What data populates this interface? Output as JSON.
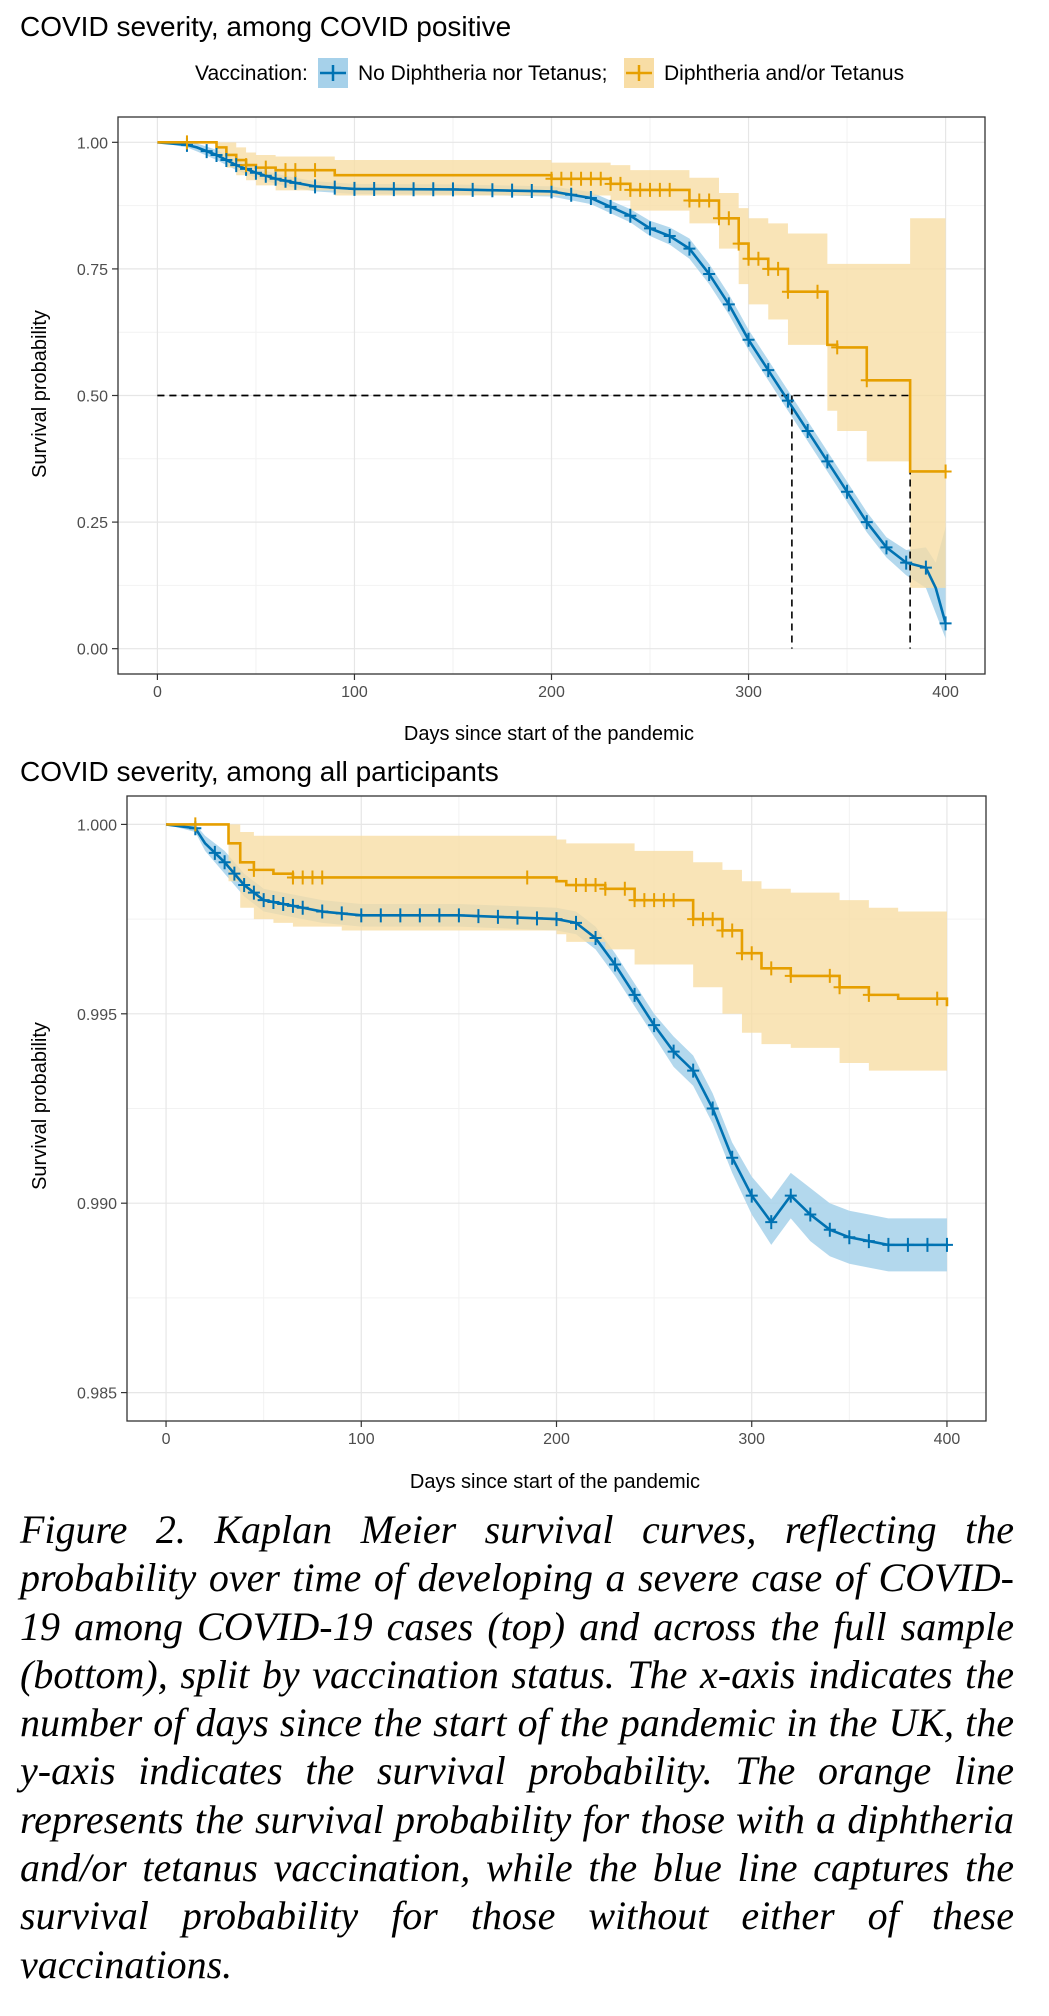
{
  "legend": {
    "title": "Vaccination:",
    "items": [
      {
        "label": "No Diphtheria nor Tetanus;",
        "color": "#0072B2",
        "fill": "#A6D1EA"
      },
      {
        "label": "Diphtheria and/or Tetanus",
        "color": "#E69F00",
        "fill": "#F8DDA5"
      }
    ]
  },
  "caption": "Figure 2. Kaplan Meier survival curves, reflecting the probability over time of developing a severe case of COVID-19 among COVID-19 cases (top) and across the full sample (bottom), split by vaccination status. The x-axis indicates the number of days since the start of the pandemic in the UK, the y-axis indicates the survival probability. The orange line represents the survival probability for those with a diphtheria and/or tetanus vaccination, while the blue line captures the survival probability for those without either of these vaccinations.",
  "chart_data": [
    {
      "type": "line",
      "title": "COVID severity, among COVID positive",
      "xlabel": "Days since start of the pandemic",
      "ylabel": "Survival probability",
      "xlim": [
        -20,
        420
      ],
      "ylim": [
        -0.05,
        1.05
      ],
      "xticks": [
        0,
        100,
        200,
        300,
        400
      ],
      "yticks": [
        0.0,
        0.25,
        0.5,
        0.75,
        1.0
      ],
      "ytick_labels": [
        "0.00",
        "0.25",
        "0.50",
        "0.75",
        "1.00"
      ],
      "grid": true,
      "median_lines": [
        {
          "y": 0.5,
          "x": 322
        },
        {
          "y": 0.5,
          "x": 382
        }
      ],
      "series": [
        {
          "name": "No Diphtheria nor Tetanus;",
          "color": "#0072B2",
          "step": false,
          "x": [
            0,
            15,
            20,
            30,
            40,
            50,
            60,
            70,
            80,
            100,
            150,
            200,
            220,
            240,
            250,
            260,
            270,
            280,
            290,
            300,
            310,
            320,
            330,
            340,
            350,
            360,
            370,
            380,
            390,
            395,
            400
          ],
          "y": [
            1.0,
            0.995,
            0.99,
            0.975,
            0.955,
            0.94,
            0.928,
            0.92,
            0.913,
            0.908,
            0.907,
            0.903,
            0.89,
            0.855,
            0.83,
            0.815,
            0.79,
            0.74,
            0.68,
            0.61,
            0.55,
            0.49,
            0.43,
            0.37,
            0.31,
            0.25,
            0.2,
            0.17,
            0.16,
            0.12,
            0.05
          ],
          "ci_lower": [
            1.0,
            0.99,
            0.982,
            0.965,
            0.945,
            0.93,
            0.918,
            0.91,
            0.903,
            0.898,
            0.897,
            0.893,
            0.878,
            0.842,
            0.815,
            0.798,
            0.77,
            0.72,
            0.66,
            0.59,
            0.53,
            0.47,
            0.41,
            0.35,
            0.29,
            0.23,
            0.18,
            0.145,
            0.12,
            0.07,
            0.02
          ],
          "ci_upper": [
            1.0,
            1.0,
            0.998,
            0.985,
            0.965,
            0.95,
            0.938,
            0.93,
            0.923,
            0.918,
            0.917,
            0.913,
            0.902,
            0.868,
            0.845,
            0.832,
            0.81,
            0.76,
            0.7,
            0.63,
            0.57,
            0.51,
            0.45,
            0.39,
            0.33,
            0.27,
            0.22,
            0.195,
            0.2,
            0.17,
            0.24
          ],
          "censor_x": [
            15,
            25,
            30,
            35,
            40,
            45,
            50,
            55,
            60,
            65,
            70,
            80,
            90,
            100,
            110,
            120,
            130,
            140,
            150,
            160,
            170,
            180,
            190,
            200,
            210,
            220,
            230,
            240,
            250,
            260,
            270,
            280,
            290,
            300,
            310,
            320,
            330,
            340,
            350,
            360,
            370,
            380,
            390,
            400
          ]
        },
        {
          "name": "Diphtheria and/or Tetanus",
          "color": "#E69F00",
          "step": true,
          "x": [
            0,
            30,
            35,
            40,
            45,
            50,
            60,
            90,
            200,
            230,
            240,
            270,
            285,
            295,
            300,
            310,
            320,
            340,
            345,
            360,
            382,
            400
          ],
          "y": [
            1.0,
            0.99,
            0.975,
            0.965,
            0.955,
            0.95,
            0.945,
            0.935,
            0.928,
            0.918,
            0.906,
            0.885,
            0.85,
            0.8,
            0.77,
            0.75,
            0.705,
            0.6,
            0.595,
            0.53,
            0.35,
            0.35
          ],
          "ci_lower": [
            1.0,
            0.97,
            0.95,
            0.935,
            0.925,
            0.915,
            0.905,
            0.895,
            0.895,
            0.885,
            0.865,
            0.84,
            0.79,
            0.72,
            0.68,
            0.65,
            0.6,
            0.47,
            0.43,
            0.37,
            0.12,
            0.12
          ],
          "ci_upper": [
            1.0,
            1.0,
            1.0,
            0.99,
            0.98,
            0.975,
            0.972,
            0.965,
            0.96,
            0.955,
            0.945,
            0.93,
            0.9,
            0.87,
            0.85,
            0.84,
            0.82,
            0.76,
            0.76,
            0.76,
            0.85,
            0.85
          ],
          "censor_x": [
            15,
            45,
            55,
            65,
            70,
            80,
            200,
            205,
            210,
            215,
            220,
            225,
            230,
            235,
            240,
            245,
            250,
            255,
            260,
            270,
            275,
            280,
            285,
            290,
            295,
            300,
            305,
            310,
            315,
            320,
            335,
            345,
            360,
            400
          ]
        }
      ]
    },
    {
      "type": "line",
      "title": "COVID severity, among all participants",
      "xlabel": "Days since start of the pandemic",
      "ylabel": "Survival probability",
      "xlim": [
        -20,
        420
      ],
      "ylim": [
        0.98425,
        1.00075
      ],
      "xticks": [
        0,
        100,
        200,
        300,
        400
      ],
      "yticks": [
        0.985,
        0.99,
        0.995,
        1.0
      ],
      "ytick_labels": [
        "0.985",
        "0.990",
        "0.995",
        "1.000"
      ],
      "grid": true,
      "median_lines": [],
      "series": [
        {
          "name": "No Diphtheria nor Tetanus;",
          "color": "#0072B2",
          "step": false,
          "x": [
            0,
            15,
            20,
            30,
            40,
            50,
            60,
            70,
            80,
            100,
            150,
            200,
            210,
            220,
            230,
            240,
            250,
            260,
            270,
            280,
            290,
            300,
            310,
            320,
            330,
            340,
            350,
            360,
            370,
            380,
            400
          ],
          "y": [
            1.0,
            0.9999,
            0.9995,
            0.999,
            0.9984,
            0.998,
            0.9979,
            0.9978,
            0.9977,
            0.9976,
            0.9976,
            0.9975,
            0.9974,
            0.997,
            0.9963,
            0.9955,
            0.9947,
            0.994,
            0.9935,
            0.9925,
            0.9912,
            0.9902,
            0.9895,
            0.9902,
            0.9897,
            0.9893,
            0.9891,
            0.989,
            0.9889,
            0.9889,
            0.9889
          ],
          "ci_lower": [
            1.0,
            0.9998,
            0.9993,
            0.9987,
            0.9981,
            0.9977,
            0.9976,
            0.9975,
            0.9974,
            0.9973,
            0.9973,
            0.9972,
            0.9971,
            0.9967,
            0.996,
            0.9952,
            0.9944,
            0.9936,
            0.9931,
            0.9921,
            0.9908,
            0.9897,
            0.9889,
            0.9896,
            0.989,
            0.9886,
            0.9884,
            0.9883,
            0.9882,
            0.9882,
            0.9882
          ],
          "ci_upper": [
            1.0,
            1.0,
            0.9997,
            0.9993,
            0.9987,
            0.9983,
            0.9982,
            0.9981,
            0.998,
            0.9979,
            0.9979,
            0.9978,
            0.9977,
            0.9973,
            0.9966,
            0.9958,
            0.995,
            0.9944,
            0.9939,
            0.9929,
            0.9916,
            0.9907,
            0.9901,
            0.9908,
            0.9904,
            0.99,
            0.9898,
            0.9897,
            0.9896,
            0.9896,
            0.9896
          ],
          "censor_x": [
            15,
            25,
            30,
            35,
            40,
            45,
            50,
            55,
            60,
            65,
            70,
            80,
            90,
            100,
            110,
            120,
            130,
            140,
            150,
            160,
            170,
            180,
            190,
            200,
            210,
            220,
            230,
            240,
            250,
            260,
            270,
            280,
            290,
            300,
            310,
            320,
            330,
            340,
            350,
            360,
            370,
            380,
            390,
            400
          ]
        },
        {
          "name": "Diphtheria and/or Tetanus",
          "color": "#E69F00",
          "step": true,
          "x": [
            0,
            32,
            38,
            45,
            55,
            65,
            90,
            200,
            205,
            225,
            240,
            270,
            285,
            295,
            305,
            320,
            345,
            360,
            375,
            400
          ],
          "y": [
            1.0,
            0.9995,
            0.999,
            0.9988,
            0.9987,
            0.9986,
            0.9986,
            0.9985,
            0.9984,
            0.9983,
            0.998,
            0.9975,
            0.9972,
            0.9966,
            0.9962,
            0.996,
            0.9957,
            0.9955,
            0.9954,
            0.9952
          ],
          "ci_lower": [
            1.0,
            0.9985,
            0.9978,
            0.9975,
            0.9974,
            0.9973,
            0.9972,
            0.9971,
            0.9969,
            0.9967,
            0.9963,
            0.9957,
            0.995,
            0.9945,
            0.9942,
            0.9941,
            0.9937,
            0.9935,
            0.9935,
            0.9935
          ],
          "ci_upper": [
            1.0,
            1.0,
            0.9998,
            0.9997,
            0.9997,
            0.9997,
            0.9997,
            0.9996,
            0.9995,
            0.9995,
            0.9993,
            0.999,
            0.9988,
            0.9985,
            0.9983,
            0.9982,
            0.998,
            0.9978,
            0.9977,
            0.997
          ],
          "censor_x": [
            15,
            45,
            65,
            70,
            75,
            80,
            185,
            210,
            215,
            220,
            225,
            235,
            240,
            245,
            250,
            255,
            260,
            270,
            275,
            280,
            285,
            290,
            295,
            300,
            310,
            320,
            340,
            345,
            360,
            395
          ]
        }
      ]
    }
  ]
}
